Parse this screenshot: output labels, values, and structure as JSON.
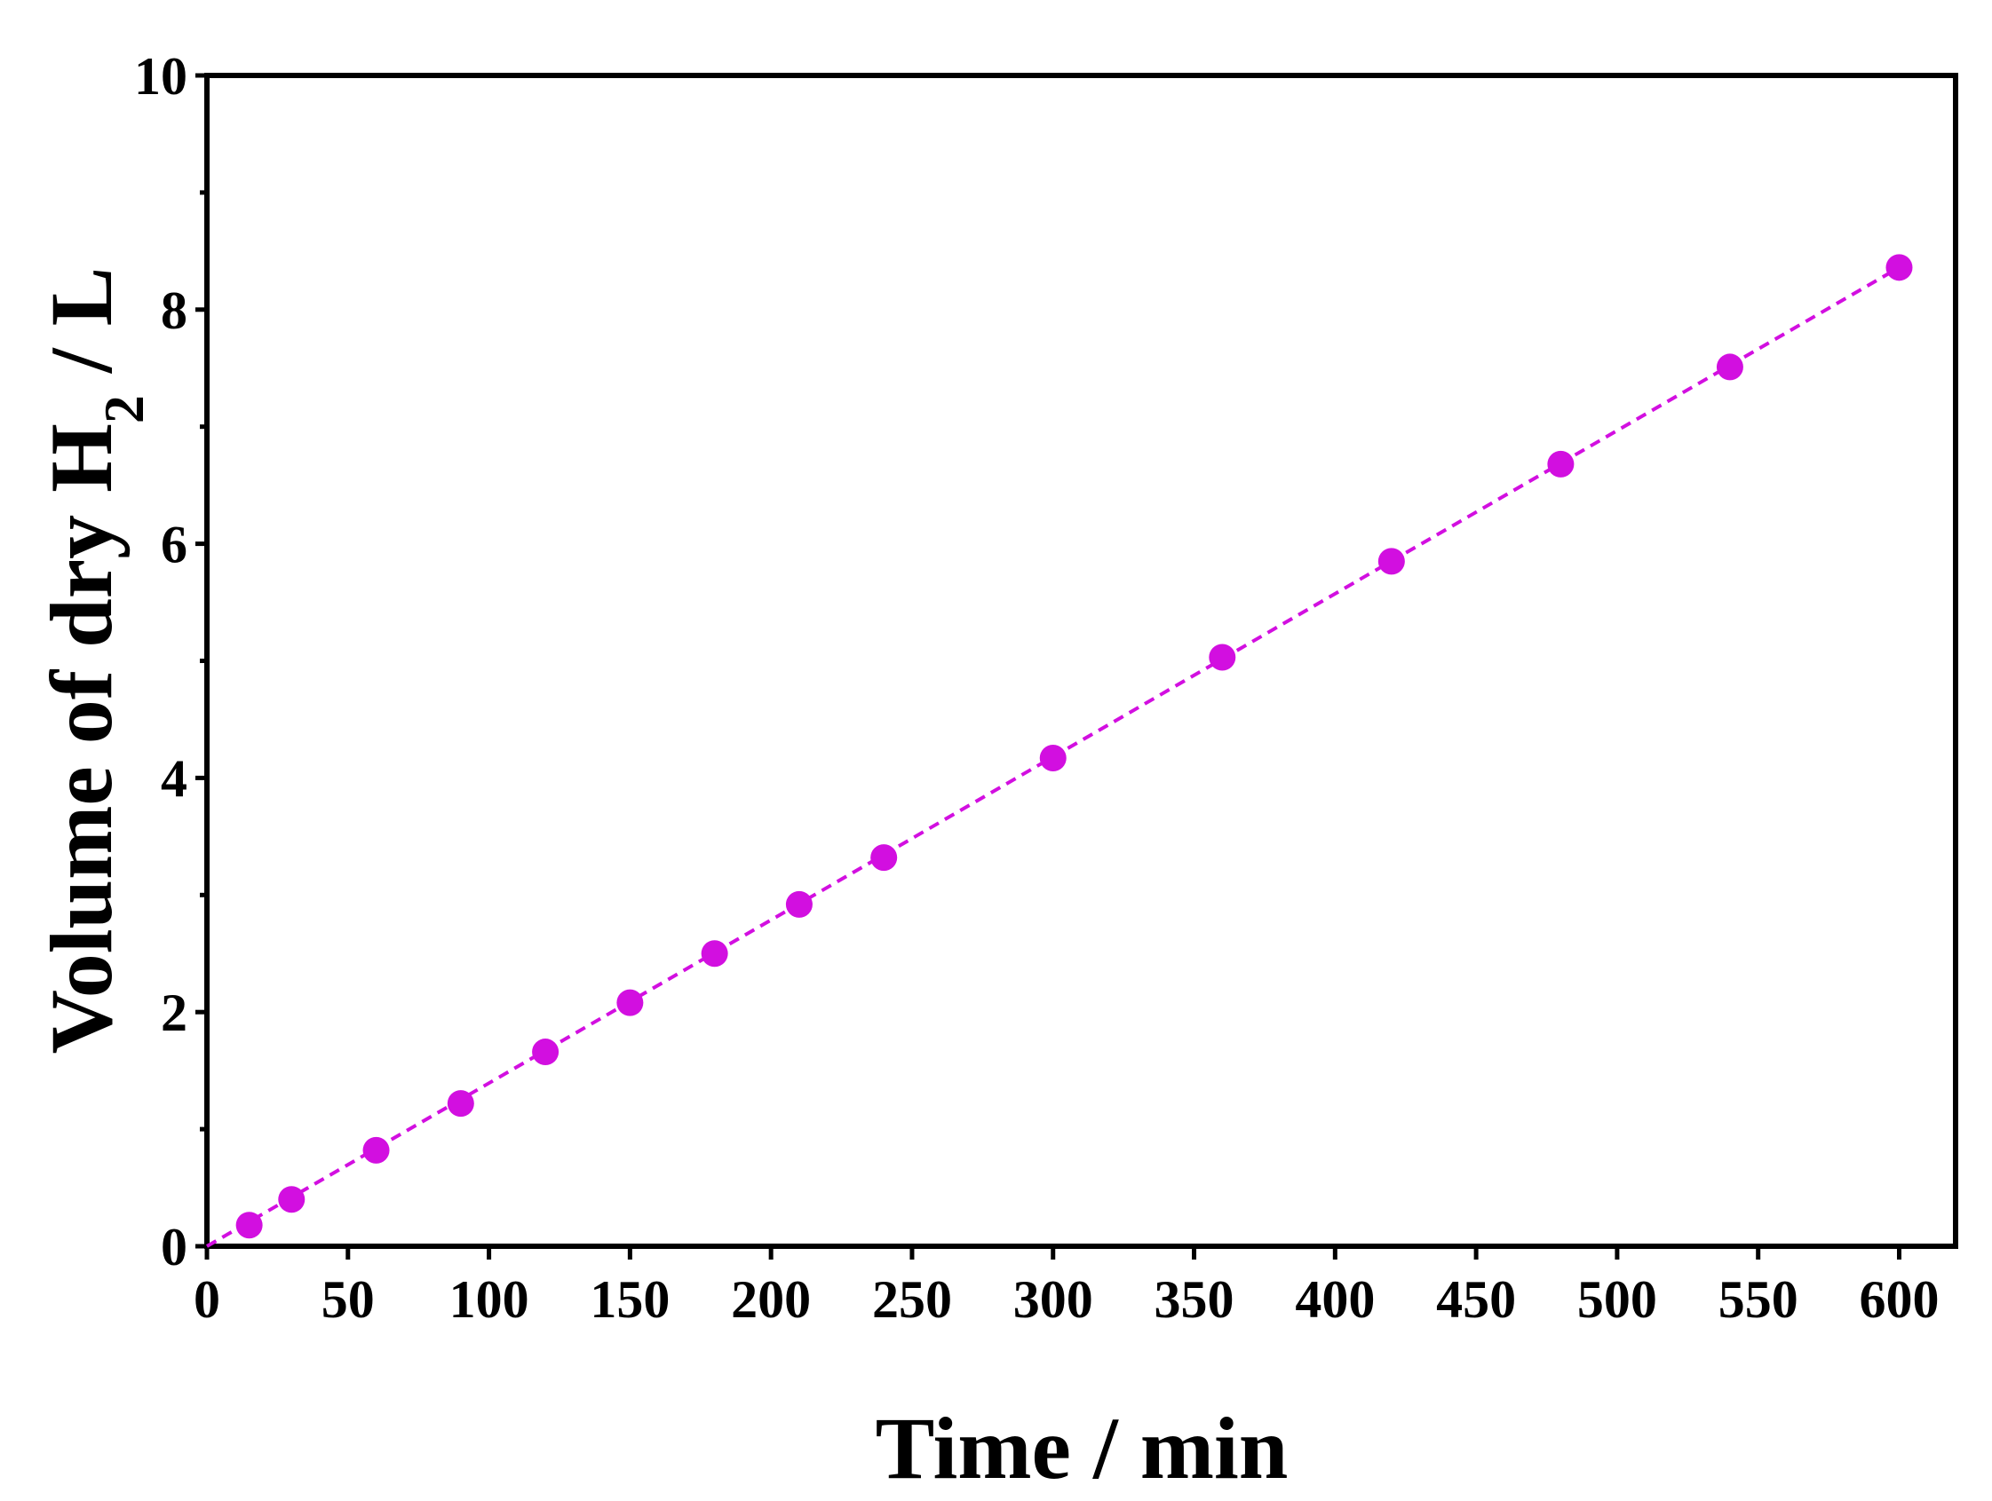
{
  "chart_data": {
    "type": "scatter",
    "xlabel": "Time / min",
    "ylabel": {
      "prefix": "Volume of dry H",
      "subscript": "2",
      "suffix": " / L"
    },
    "xlim": [
      0,
      620
    ],
    "ylim": [
      0,
      10
    ],
    "x_ticks": [
      "0",
      "50",
      "100",
      "150",
      "200",
      "250",
      "300",
      "350",
      "400",
      "450",
      "500",
      "550",
      "600"
    ],
    "y_ticks": [
      "0",
      "2",
      "4",
      "6",
      "8",
      "10"
    ],
    "grid": false,
    "legend": "none",
    "series": [
      {
        "color": "#d20fe0",
        "marker": "circle",
        "x": [
          15,
          30,
          60,
          90,
          120,
          150,
          180,
          210,
          240,
          300,
          360,
          420,
          480,
          540,
          600
        ],
        "y": [
          0.18,
          0.4,
          0.82,
          1.22,
          1.66,
          2.08,
          2.5,
          2.92,
          3.32,
          4.17,
          5.03,
          5.85,
          6.68,
          7.51,
          8.36
        ]
      }
    ],
    "fit_line": {
      "style": "dashed",
      "color": "#d20fe0",
      "x": [
        0,
        600
      ],
      "y": [
        0,
        8.36
      ]
    }
  }
}
